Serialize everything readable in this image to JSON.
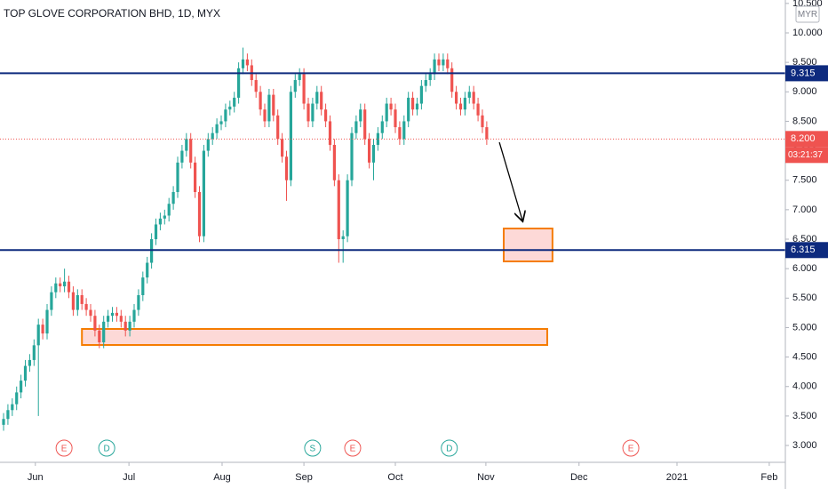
{
  "chart_data": {
    "type": "candlestick",
    "title": "TOP GLOVE CORPORATION BHD, 1D, MYX",
    "currency": "MYR",
    "x": [
      0,
      1,
      2,
      3,
      4,
      5,
      6,
      7,
      8,
      9,
      10,
      11,
      12,
      13,
      14,
      15,
      16,
      17,
      18,
      19,
      20,
      21,
      22,
      23,
      24,
      25,
      26,
      27,
      28,
      29,
      30,
      31,
      32,
      33,
      34,
      35,
      36,
      37,
      38,
      39,
      40,
      41,
      42,
      43,
      44,
      45,
      46,
      47,
      48,
      49,
      50,
      51,
      52,
      53,
      54,
      55,
      56,
      57,
      58,
      59,
      60,
      61,
      62,
      63,
      64,
      65,
      66,
      67,
      68,
      69,
      70,
      71,
      72,
      73,
      74,
      75,
      76,
      77,
      78,
      79,
      80,
      81,
      82,
      83,
      84,
      85,
      86,
      87,
      88,
      89,
      90,
      91,
      92,
      93,
      94,
      95,
      96,
      97,
      98,
      99,
      100,
      101,
      102,
      103,
      104,
      105,
      106,
      107,
      108,
      109,
      110,
      111
    ],
    "open": [
      3.35,
      3.45,
      3.6,
      3.7,
      3.9,
      4.1,
      4.35,
      4.45,
      4.7,
      5.05,
      4.9,
      5.3,
      5.6,
      5.75,
      5.7,
      5.78,
      5.6,
      5.3,
      5.55,
      5.4,
      5.3,
      5.2,
      4.95,
      4.75,
      5.1,
      5.2,
      5.25,
      5.2,
      5.1,
      4.95,
      5.1,
      5.3,
      5.55,
      5.85,
      6.1,
      6.5,
      6.75,
      6.85,
      6.9,
      7.1,
      7.3,
      7.8,
      8.0,
      8.2,
      7.8,
      7.3,
      6.55,
      8.0,
      8.2,
      8.3,
      8.45,
      8.5,
      8.7,
      8.75,
      8.9,
      9.4,
      9.55,
      9.45,
      9.2,
      9.0,
      8.7,
      8.5,
      8.95,
      8.6,
      8.2,
      7.9,
      7.5,
      9.0,
      9.2,
      9.3,
      8.8,
      8.5,
      8.8,
      9.0,
      8.7,
      8.5,
      8.1,
      7.5,
      6.5,
      6.55,
      7.5,
      8.3,
      8.5,
      8.7,
      8.2,
      7.8,
      8.1,
      8.3,
      8.5,
      8.8,
      8.7,
      8.4,
      8.2,
      8.5,
      8.9,
      8.7,
      8.8,
      9.1,
      9.2,
      9.3,
      9.55,
      9.45,
      9.55,
      9.4,
      9.0,
      8.8,
      8.7,
      8.9,
      9.0,
      8.8,
      8.6,
      8.4
    ],
    "high": [
      3.55,
      3.7,
      3.8,
      4.0,
      4.2,
      4.45,
      4.55,
      4.8,
      5.15,
      5.15,
      5.4,
      5.7,
      5.85,
      5.85,
      6.0,
      5.88,
      5.7,
      5.65,
      5.65,
      5.5,
      5.4,
      5.3,
      5.05,
      5.2,
      5.3,
      5.35,
      5.35,
      5.3,
      5.2,
      5.2,
      5.4,
      5.65,
      5.95,
      6.2,
      6.6,
      6.85,
      6.95,
      7.0,
      7.2,
      7.4,
      7.9,
      8.1,
      8.3,
      8.3,
      7.9,
      7.4,
      8.1,
      8.3,
      8.4,
      8.55,
      8.6,
      8.8,
      8.85,
      9.0,
      9.5,
      9.75,
      9.65,
      9.55,
      9.3,
      9.1,
      8.8,
      9.05,
      9.05,
      8.7,
      8.3,
      8.0,
      9.1,
      9.3,
      9.4,
      9.4,
      8.9,
      8.9,
      9.1,
      9.1,
      8.8,
      8.6,
      8.2,
      7.6,
      6.65,
      7.6,
      8.4,
      8.6,
      8.8,
      8.8,
      8.3,
      8.2,
      8.4,
      8.6,
      8.9,
      8.9,
      8.8,
      8.5,
      8.6,
      9.0,
      9.0,
      8.9,
      9.2,
      9.3,
      9.4,
      9.65,
      9.65,
      9.65,
      9.65,
      9.5,
      9.1,
      8.9,
      9.0,
      9.1,
      9.1,
      8.9,
      8.7,
      8.5
    ],
    "low": [
      3.25,
      3.35,
      3.5,
      3.6,
      3.8,
      4.0,
      4.25,
      4.35,
      3.5,
      4.8,
      4.8,
      5.2,
      5.5,
      5.6,
      5.6,
      5.5,
      5.2,
      5.2,
      5.3,
      5.2,
      5.1,
      4.85,
      4.65,
      4.65,
      5.0,
      5.1,
      5.1,
      5.0,
      4.85,
      4.85,
      5.0,
      5.2,
      5.45,
      5.75,
      6.0,
      6.4,
      6.65,
      6.75,
      6.8,
      7.0,
      7.2,
      7.7,
      7.9,
      7.7,
      7.2,
      6.45,
      6.45,
      7.9,
      8.1,
      8.2,
      8.35,
      8.4,
      8.6,
      8.65,
      8.8,
      9.3,
      9.35,
      9.1,
      8.9,
      8.6,
      8.4,
      8.4,
      8.5,
      8.1,
      7.8,
      7.15,
      7.4,
      8.9,
      9.1,
      8.7,
      8.4,
      8.4,
      8.7,
      8.6,
      8.4,
      8.0,
      7.4,
      6.1,
      6.1,
      6.45,
      7.4,
      8.2,
      8.4,
      8.1,
      7.7,
      7.5,
      8.0,
      8.2,
      8.4,
      8.6,
      8.3,
      8.1,
      8.1,
      8.4,
      8.6,
      8.6,
      8.7,
      9.0,
      9.1,
      9.2,
      9.35,
      9.35,
      9.3,
      8.9,
      8.7,
      8.6,
      8.6,
      8.8,
      8.7,
      8.5,
      8.3,
      8.1
    ],
    "close": [
      3.45,
      3.6,
      3.7,
      3.9,
      4.1,
      4.35,
      4.45,
      4.7,
      5.05,
      4.9,
      5.3,
      5.6,
      5.75,
      5.7,
      5.78,
      5.6,
      5.3,
      5.55,
      5.4,
      5.3,
      5.2,
      4.95,
      4.75,
      5.1,
      5.2,
      5.25,
      5.2,
      5.1,
      4.95,
      5.1,
      5.3,
      5.55,
      5.85,
      6.1,
      6.5,
      6.75,
      6.85,
      6.9,
      7.1,
      7.3,
      7.8,
      8.0,
      8.2,
      7.8,
      7.3,
      6.55,
      8.0,
      8.2,
      8.3,
      8.45,
      8.5,
      8.7,
      8.75,
      8.9,
      9.4,
      9.55,
      9.45,
      9.2,
      9.0,
      8.7,
      8.5,
      8.95,
      8.6,
      8.2,
      7.9,
      7.5,
      9.0,
      9.2,
      9.3,
      8.8,
      8.5,
      8.8,
      9.0,
      8.7,
      8.5,
      8.1,
      7.5,
      6.5,
      6.55,
      7.5,
      8.3,
      8.5,
      8.7,
      8.2,
      7.8,
      8.1,
      8.3,
      8.5,
      8.8,
      8.7,
      8.4,
      8.2,
      8.5,
      8.9,
      8.7,
      8.8,
      9.1,
      9.2,
      9.3,
      9.55,
      9.45,
      9.55,
      9.4,
      9.0,
      8.8,
      8.7,
      8.9,
      9.0,
      8.8,
      8.6,
      8.4,
      8.2
    ],
    "up_color": "#26a69a",
    "down_color": "#ef5350",
    "xlim": [
      -0.82,
      179.6
    ],
    "xticks": [
      {
        "value": 7.3,
        "label": "Jun"
      },
      {
        "value": 28.8,
        "label": "Jul"
      },
      {
        "value": 50.2,
        "label": "Aug"
      },
      {
        "value": 69.0,
        "label": "Sep"
      },
      {
        "value": 90.0,
        "label": "Oct"
      },
      {
        "value": 110.8,
        "label": "Nov"
      },
      {
        "value": 132.2,
        "label": "Dec"
      },
      {
        "value": 154.7,
        "label": "2021"
      },
      {
        "value": 175.9,
        "label": "Feb"
      }
    ],
    "ylim": [
      2.714,
      10.558
    ],
    "yticks": [
      {
        "value": 3,
        "label": "3.000"
      },
      {
        "value": 3.5,
        "label": "3.500"
      },
      {
        "value": 4,
        "label": "4.000"
      },
      {
        "value": 4.5,
        "label": "4.500"
      },
      {
        "value": 5,
        "label": "5.000"
      },
      {
        "value": 5.5,
        "label": "5.500"
      },
      {
        "value": 6,
        "label": "6.000"
      },
      {
        "value": 6.5,
        "label": "6.500"
      },
      {
        "value": 7,
        "label": "7.000"
      },
      {
        "value": 7.5,
        "label": "7.500"
      },
      {
        "value": 8,
        "label": "8.000"
      },
      {
        "value": 8.5,
        "label": "8.500"
      },
      {
        "value": 9,
        "label": "9.000"
      },
      {
        "value": 9.5,
        "label": "9.500"
      },
      {
        "value": 10,
        "label": "10.000"
      },
      {
        "value": 10.5,
        "label": "10.500"
      }
    ],
    "grid": false,
    "levels": [
      {
        "value": 9.315,
        "color": "#0d2a7e"
      },
      {
        "value": 6.315,
        "color": "#0d2a7e"
      }
    ],
    "last_price": {
      "value": 8.2,
      "label": "8.200",
      "color": "#ef5350"
    },
    "countdown": "03:21:37",
    "zones": [
      {
        "x": [
          114.9,
          126.1
        ],
        "y": [
          6.123,
          6.681
        ]
      },
      {
        "x": [
          18.0,
          124.9
        ],
        "y": [
          4.705,
          4.977
        ]
      }
    ],
    "arrow": {
      "x": [
        113.9,
        119.2
      ],
      "y": [
        8.144,
        6.817
      ]
    },
    "events": [
      {
        "label": "E",
        "x": 13.9,
        "color": "#ef5350"
      },
      {
        "label": "D",
        "x": 23.7,
        "color": "#26a69a"
      },
      {
        "label": "S",
        "x": 71.0,
        "color": "#26a69a"
      },
      {
        "label": "E",
        "x": 80.2,
        "color": "#ef5350"
      },
      {
        "label": "D",
        "x": 102.4,
        "color": "#26a69a"
      },
      {
        "label": "E",
        "x": 144.1,
        "color": "#ef5350"
      }
    ]
  }
}
